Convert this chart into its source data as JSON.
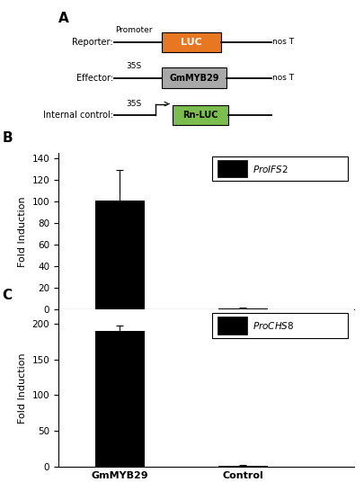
{
  "panel_A": {
    "reporter_label": "Reporter:",
    "effector_label": "Effector:",
    "internal_label": "Internal control:",
    "promoter_text": "Promoter",
    "luc_text": "LUC",
    "luc_color": "#E87722",
    "gmmyb29_text": "GmMYB29",
    "gmmyb29_color": "#A8A8A8",
    "rnluc_text": "Rn-LUC",
    "rnluc_color": "#7BBD4E",
    "nost_text": "nos T",
    "s35_text": "35S"
  },
  "panel_B": {
    "legend_label": "ProIFS2",
    "categories": [
      "GmMYB29",
      "Control"
    ],
    "values": [
      101,
      1.5
    ],
    "errors": [
      28,
      0.5
    ],
    "bar_color": "#000000",
    "ylabel": "Fold Induction",
    "ylim": [
      0,
      145
    ],
    "yticks": [
      0,
      20,
      40,
      60,
      80,
      100,
      120,
      140
    ]
  },
  "panel_C": {
    "legend_label": "ProCHS8",
    "categories": [
      "GmMYB29",
      "Control"
    ],
    "values": [
      190,
      1.5
    ],
    "errors": [
      8,
      0.5
    ],
    "bar_color": "#000000",
    "ylabel": "Fold Induction",
    "ylim": [
      0,
      220
    ],
    "yticks": [
      0,
      50,
      100,
      150,
      200
    ]
  },
  "panel_labels": [
    "A",
    "B",
    "C"
  ],
  "panel_label_fontsize": 11,
  "axis_fontsize": 8,
  "tick_fontsize": 7.5,
  "xticklabel_fontsize": 8,
  "background_color": "#ffffff"
}
